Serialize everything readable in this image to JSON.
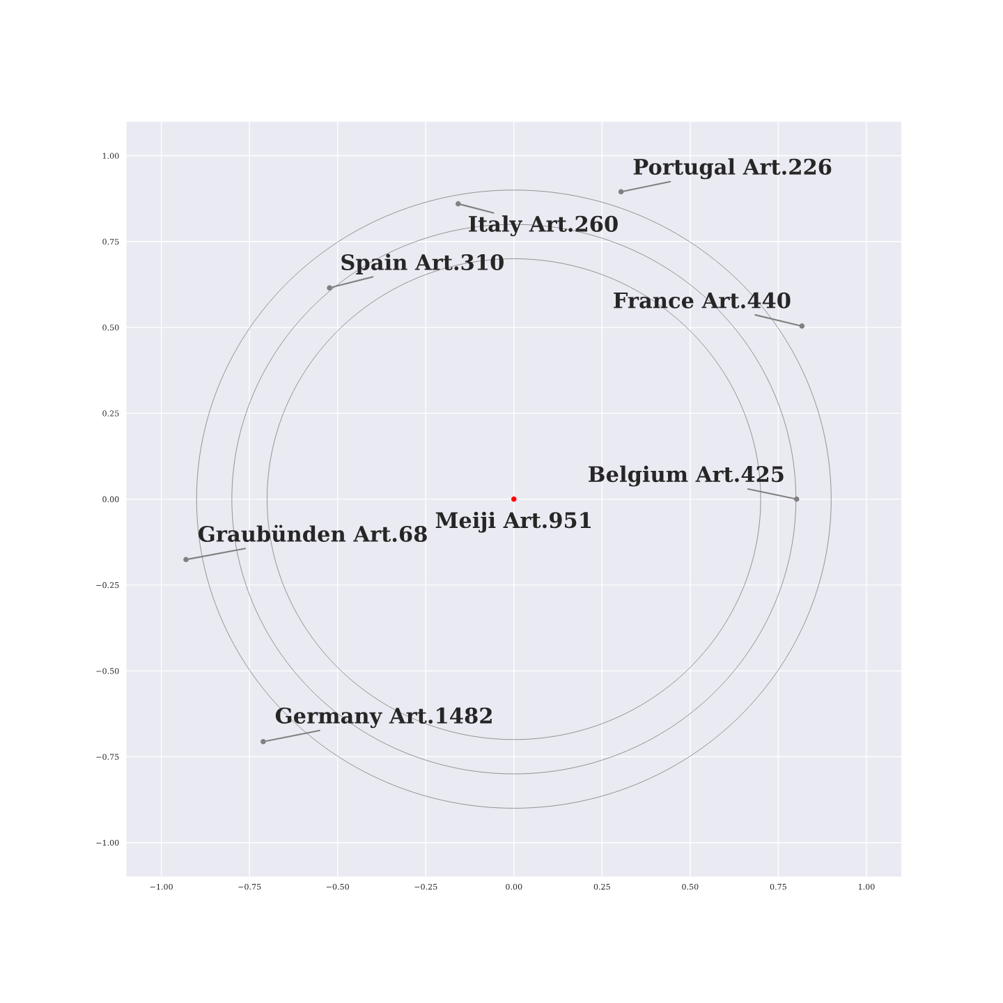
{
  "chart_data": {
    "type": "scatter",
    "xlim": [
      -1.1,
      1.1
    ],
    "ylim": [
      -1.1,
      1.1
    ],
    "xticks": [
      {
        "value": -1,
        "label": "−1.00"
      },
      {
        "value": -0.75,
        "label": "−0.75"
      },
      {
        "value": -0.5,
        "label": "−0.50"
      },
      {
        "value": -0.25,
        "label": "−0.25"
      },
      {
        "value": 0,
        "label": "0.00"
      },
      {
        "value": 0.25,
        "label": "0.25"
      },
      {
        "value": 0.5,
        "label": "0.50"
      },
      {
        "value": 0.75,
        "label": "0.75"
      },
      {
        "value": 1,
        "label": "1.00"
      }
    ],
    "yticks": [
      {
        "value": -1,
        "label": "−1.00"
      },
      {
        "value": -0.75,
        "label": "−0.75"
      },
      {
        "value": -0.5,
        "label": "−0.50"
      },
      {
        "value": -0.25,
        "label": "−0.25"
      },
      {
        "value": 0,
        "label": "0.00"
      },
      {
        "value": 0.25,
        "label": "0.25"
      },
      {
        "value": 0.5,
        "label": "0.50"
      },
      {
        "value": 0.75,
        "label": "0.75"
      },
      {
        "value": 1,
        "label": "1.00"
      }
    ],
    "grid": true,
    "marker": "circle",
    "series": [
      {
        "x": [
          0,
          0.304,
          -0.158,
          -0.523,
          0.817,
          0.802,
          -0.93,
          -0.711
        ],
        "values": [
          0,
          0.895,
          0.86,
          0.615,
          0.504,
          0,
          -0.176,
          -0.706
        ],
        "colors": [
          "#ff0000",
          "#808080",
          "#808080",
          "#808080",
          "#808080",
          "#808080",
          "#808080",
          "#808080"
        ]
      }
    ],
    "annotations": [
      {
        "text": "Meiji Art.951",
        "x": 0,
        "y": 0
      },
      {
        "text": "Portugal Art.226",
        "x": 0.304,
        "y": 0.895
      },
      {
        "text": "Italy Art.260",
        "x": -0.158,
        "y": 0.86
      },
      {
        "text": "Spain Art.310",
        "x": -0.523,
        "y": 0.615
      },
      {
        "text": "France Art.440",
        "x": 0.817,
        "y": 0.504
      },
      {
        "text": "Belgium Art.425",
        "x": 0.802,
        "y": 0
      },
      {
        "text": "Graubünden Art.68",
        "x": -0.93,
        "y": -0.176
      },
      {
        "text": "Germany Art.1482",
        "x": -0.711,
        "y": -0.706
      }
    ]
  }
}
